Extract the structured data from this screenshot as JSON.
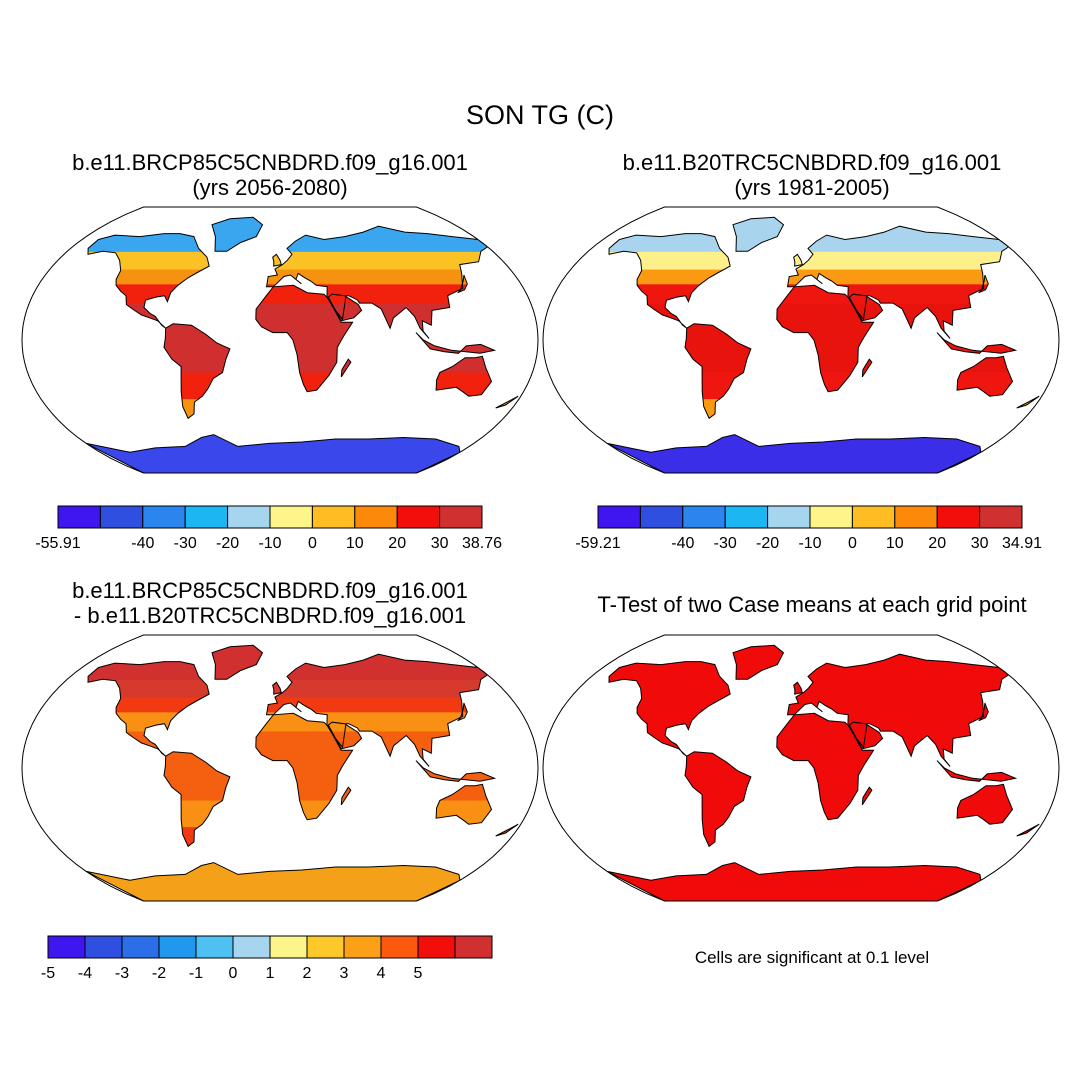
{
  "title": "SON TG (C)",
  "panels": [
    {
      "id": "p1",
      "title_line1": "b.e11.BRCP85C5CNBDRD.f09_g16.001",
      "title_line2": "(yrs 2056-2080)",
      "palette": [
        "#4016f0",
        "#2f4fe0",
        "#2a86ee",
        "#1cb6f2",
        "#a6d6ef",
        "#fdf48a",
        "#fdbd23",
        "#fb8a0b",
        "#f20e0b",
        "#d0302f"
      ],
      "colorbar_labels": [
        "-55.91",
        "-40",
        "-30",
        "-20",
        "-10",
        "0",
        "10",
        "20",
        "30",
        "38.76"
      ],
      "colors": {
        "polar": "#3a47ea",
        "arctic": "#3aa6f0",
        "boreal": "#fbc226",
        "mid": "#f5920f",
        "warm": "#f2210e",
        "hot": "#cf2f2e"
      }
    },
    {
      "id": "p2",
      "title_line1": "b.e11.B20TRC5CNBDRD.f09_g16.001",
      "title_line2": "(yrs 1981-2005)",
      "palette": [
        "#4016f0",
        "#2f4fe0",
        "#2a86ee",
        "#1cb6f2",
        "#a6d6ef",
        "#fdf48a",
        "#fdbd23",
        "#fb8a0b",
        "#f20e0b",
        "#d0302f"
      ],
      "colorbar_labels": [
        "-59.21",
        "-40",
        "-30",
        "-20",
        "-10",
        "0",
        "10",
        "20",
        "30",
        "34.91"
      ],
      "colors": {
        "polar": "#3a2ee8",
        "arctic": "#a9d4ee",
        "boreal": "#fdf08a",
        "mid": "#fb9a12",
        "warm": "#f01610",
        "hot": "#e8130d"
      }
    },
    {
      "id": "p3",
      "title_line1": "b.e11.BRCP85C5CNBDRD.f09_g16.001",
      "title_line2": "- b.e11.B20TRC5CNBDRD.f09_g16.001",
      "palette": [
        "#4016f0",
        "#2f4fe0",
        "#2a6ee8",
        "#1f98ee",
        "#4fc0f2",
        "#a6d6ef",
        "#fdf48a",
        "#fdc92a",
        "#fba017",
        "#fb5a0e",
        "#f20e0b",
        "#d0302f"
      ],
      "colorbar_labels": [
        "-5",
        "-4",
        "-3",
        "-2",
        "-1",
        "0",
        "1",
        "2",
        "3",
        "4",
        "5"
      ],
      "colors": {
        "polar": "#f4a019",
        "arctic": "#d0302f",
        "boreal": "#d63a2c",
        "mid": "#f23a12",
        "warm": "#f98f13",
        "hot": "#f4600f"
      }
    },
    {
      "id": "p4",
      "title_line1": "T-Test of two Case means at each grid point",
      "title_line2": "",
      "note": "Cells are significant at 0.1 level",
      "colors": {
        "polar": "#f00a0a",
        "arctic": "#f00a0a",
        "boreal": "#f00a0a",
        "mid": "#f00a0a",
        "warm": "#f00a0a",
        "hot": "#f00a0a"
      }
    }
  ]
}
